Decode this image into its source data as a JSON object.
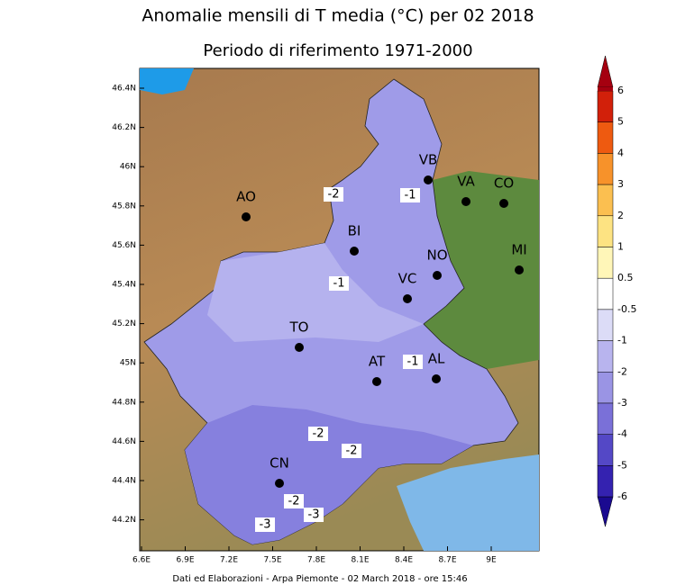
{
  "header": {
    "title": "Anomalie mensili di T media (°C) per 02 2018",
    "subtitle": "Periodo di riferimento 1971-2000"
  },
  "lat_ticks": [
    "46.4N",
    "46.2N",
    "46N",
    "45.8N",
    "45.6N",
    "45.4N",
    "45.2N",
    "45N",
    "44.8N",
    "44.6N",
    "44.4N",
    "44.2N"
  ],
  "lon_ticks": [
    "6.6E",
    "6.9E",
    "7.2E",
    "7.5E",
    "7.8E",
    "8.1E",
    "8.4E",
    "8.7E",
    "9E"
  ],
  "cities": [
    "VB",
    "VA",
    "CO",
    "AO",
    "BI",
    "NO",
    "MI",
    "VC",
    "TO",
    "AT",
    "AL",
    "CN"
  ],
  "contour_labels": [
    "-2",
    "-1",
    "-1",
    "-1",
    "-2",
    "-2",
    "-2",
    "-3",
    "-3"
  ],
  "colorbar": {
    "labels": [
      "6",
      "5",
      "4",
      "3",
      "2",
      "1",
      "0.5",
      "-0.5",
      "-1",
      "-2",
      "-3",
      "-4",
      "-5",
      "-6"
    ]
  },
  "footer": "Dati ed Elaborazioni - Arpa Piemonte - 02 March 2018 - ore 15:46"
}
